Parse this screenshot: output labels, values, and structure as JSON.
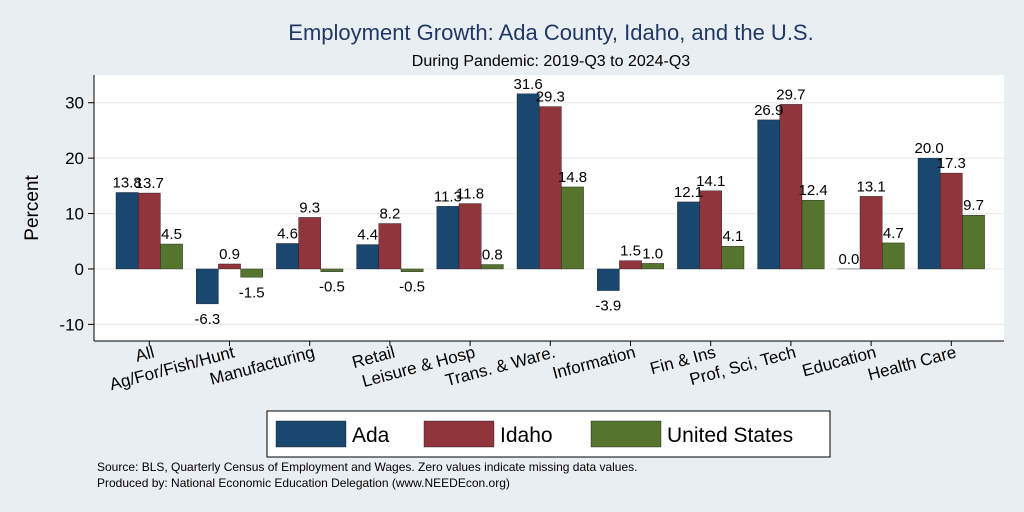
{
  "chart_data": {
    "type": "bar",
    "title": "Employment Growth: Ada County, Idaho, and the U.S.",
    "subtitle": "During Pandemic: 2019-Q3 to 2024-Q3",
    "ylabel": "Percent",
    "ylim": [
      -13,
      35
    ],
    "yticks": [
      -10,
      0,
      10,
      20,
      30
    ],
    "grid": true,
    "legend_position": "bottom",
    "categories": [
      "All",
      "Ag/For/Fish/Hunt",
      "Manufacturing",
      "Retail",
      "Leisure & Hosp",
      "Trans. & Ware.",
      "Information",
      "Fin & Ins",
      "Prof, Sci, Tech",
      "Education",
      "Health Care"
    ],
    "series": [
      {
        "name": "Ada",
        "color": "#1a476f",
        "values": [
          13.8,
          -6.3,
          4.6,
          4.4,
          11.3,
          31.6,
          -3.9,
          12.1,
          26.9,
          0.0,
          20.0
        ],
        "labels": [
          "13.8",
          "-6.3",
          "4.6",
          "4.4",
          "11.3",
          "31.6",
          "-3.9",
          "12.1",
          "26.9",
          "0.0",
          "20.0"
        ]
      },
      {
        "name": "Idaho",
        "color": "#90353b",
        "values": [
          13.7,
          0.9,
          9.3,
          8.2,
          11.8,
          29.3,
          1.5,
          14.1,
          29.7,
          13.1,
          17.3
        ],
        "labels": [
          "13.7",
          "0.9",
          "9.3",
          "8.2",
          "11.8",
          "29.3",
          "1.5",
          "14.1",
          "29.7",
          "13.1",
          "17.3"
        ]
      },
      {
        "name": "United States",
        "color": "#55752f",
        "values": [
          4.5,
          -1.5,
          -0.5,
          -0.5,
          0.8,
          14.8,
          1.0,
          4.1,
          12.4,
          4.7,
          9.7
        ],
        "labels": [
          "4.5",
          "-1.5",
          "-0.5",
          "-0.5",
          "0.8",
          "14.8",
          "1.0",
          "4.1",
          "12.4",
          "4.7",
          "9.7"
        ]
      }
    ],
    "notes": [
      "Source: BLS, Quarterly Census of Employment and Wages. Zero values indicate missing data values.",
      "Produced by: National Economic Education Delegation (www.NEEDEcon.org)"
    ]
  }
}
